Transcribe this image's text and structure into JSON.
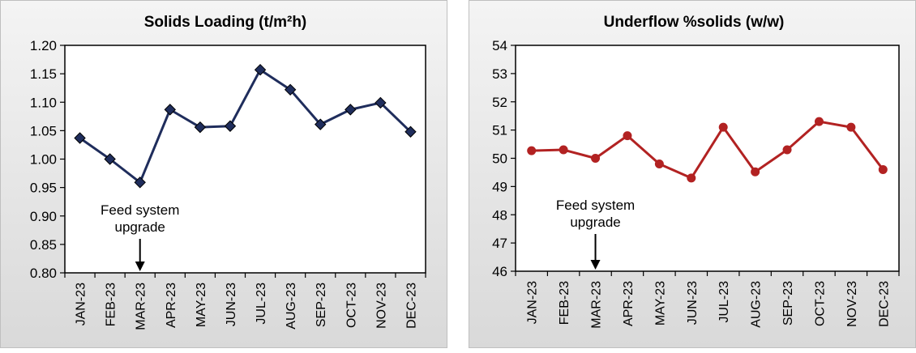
{
  "chart_data": [
    {
      "type": "line",
      "title": "Solids Loading (t/m²h)",
      "categories": [
        "JAN-23",
        "FEB-23",
        "MAR-23",
        "APR-23",
        "MAY-23",
        "JUN-23",
        "JUL-23",
        "AUG-23",
        "SEP-23",
        "OCT-23",
        "NOV-23",
        "DEC-23"
      ],
      "values": [
        1.037,
        1.0,
        0.959,
        1.087,
        1.056,
        1.058,
        1.157,
        1.122,
        1.061,
        1.087,
        1.099,
        1.048
      ],
      "ylim": [
        0.8,
        1.2
      ],
      "yticks": [
        "0.80",
        "0.85",
        "0.90",
        "0.95",
        "1.00",
        "1.05",
        "1.10",
        "1.15",
        "1.20"
      ],
      "marker": "diamond",
      "color": "#1f2d5c",
      "annotation": {
        "lines": [
          "Feed system",
          "upgrade"
        ],
        "category": "MAR-23"
      }
    },
    {
      "type": "line",
      "title": "Underflow %solids (w/w)",
      "categories": [
        "JAN-23",
        "FEB-23",
        "MAR-23",
        "APR-23",
        "MAY-23",
        "JUN-23",
        "JUL-23",
        "AUG-23",
        "SEP-23",
        "OCT-23",
        "NOV-23",
        "DEC-23"
      ],
      "values": [
        50.27,
        50.3,
        50.0,
        50.8,
        49.8,
        49.3,
        51.1,
        49.52,
        50.3,
        51.3,
        51.1,
        49.6
      ],
      "ylim": [
        46,
        54
      ],
      "yticks": [
        "46",
        "47",
        "48",
        "49",
        "50",
        "51",
        "52",
        "53",
        "54"
      ],
      "marker": "circle",
      "color": "#b22222",
      "annotation": {
        "lines": [
          "Feed system",
          "upgrade"
        ],
        "category": "MAR-23"
      }
    }
  ]
}
